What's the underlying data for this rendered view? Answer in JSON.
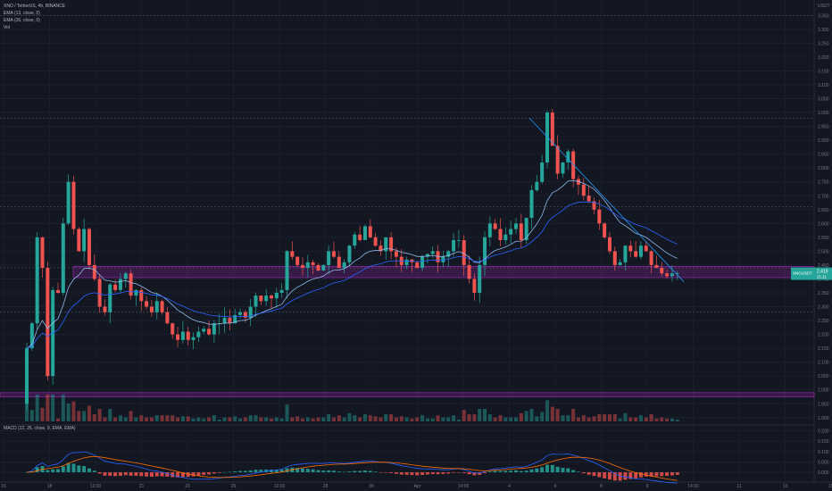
{
  "header": {
    "symbol_line": "XNO / TetherUS, 4h, BINANCE",
    "indicator_1": "EMA (13, close, 0)",
    "indicator_2": "EMA (26, close, 0)",
    "indicator_3": "Vol",
    "macd_legend": "MACD (12, 26, close, 9, EMA, EMA)"
  },
  "axis": {
    "currency": "USDT",
    "price_badge_symbol": "XNOUSDT",
    "price_badge_value": "2.419",
    "price_badge_time": "21:11"
  },
  "chart_data": {
    "type": "candlestick",
    "price_ticks": [
      "3.350",
      "3.300",
      "3.250",
      "3.200",
      "3.150",
      "3.100",
      "3.050",
      "3.000",
      "2.950",
      "2.900",
      "2.850",
      "2.800",
      "2.750",
      "2.700",
      "2.650",
      "2.600",
      "2.550",
      "2.500",
      "2.450",
      "2.400",
      "2.350",
      "2.300",
      "2.250",
      "2.200",
      "2.150",
      "2.100",
      "2.050",
      "2.000",
      "1.950",
      "1.900"
    ],
    "price_range": [
      1.88,
      3.38
    ],
    "macd_ticks": [
      "0.200",
      "0.150",
      "0.100",
      "0.050",
      "0.000"
    ],
    "macd_range": [
      -0.03,
      0.22
    ],
    "time_labels": [
      {
        "label": "16",
        "ts": 0
      },
      {
        "label": "18",
        "ts": 18
      },
      {
        "label": "12:00",
        "ts": 36
      },
      {
        "label": "21",
        "ts": 54
      },
      {
        "label": "23",
        "ts": 72
      },
      {
        "label": "25",
        "ts": 90
      },
      {
        "label": "12:00",
        "ts": 108
      },
      {
        "label": "28",
        "ts": 126
      },
      {
        "label": "30",
        "ts": 144
      },
      {
        "label": "Apr",
        "ts": 162
      },
      {
        "label": "14:00",
        "ts": 180
      },
      {
        "label": "4",
        "ts": 198
      },
      {
        "label": "6",
        "ts": 216
      },
      {
        "label": "8",
        "ts": 234
      },
      {
        "label": "9",
        "ts": 252
      },
      {
        "label": "14:00",
        "ts": 270
      },
      {
        "label": "11",
        "ts": 288
      },
      {
        "label": "13",
        "ts": 306
      },
      {
        "label": "15",
        "ts": 324
      }
    ],
    "candles_close": [
      2.15,
      2.24,
      2.55,
      2.44,
      2.05,
      2.36,
      2.35,
      2.6,
      2.75,
      2.58,
      2.5,
      2.58,
      2.45,
      2.4,
      2.3,
      2.28,
      2.38,
      2.36,
      2.4,
      2.42,
      2.34,
      2.36,
      2.32,
      2.3,
      2.28,
      2.32,
      2.28,
      2.24,
      2.2,
      2.18,
      2.21,
      2.18,
      2.19,
      2.21,
      2.22,
      2.2,
      2.24,
      2.24,
      2.26,
      2.24,
      2.27,
      2.28,
      2.26,
      2.3,
      2.34,
      2.32,
      2.34,
      2.33,
      2.35,
      2.36,
      2.5,
      2.48,
      2.45,
      2.44,
      2.46,
      2.45,
      2.43,
      2.45,
      2.5,
      2.48,
      2.44,
      2.46,
      2.52,
      2.56,
      2.54,
      2.59,
      2.55,
      2.52,
      2.5,
      2.55,
      2.5,
      2.48,
      2.45,
      2.47,
      2.46,
      2.44,
      2.48,
      2.49,
      2.5,
      2.46,
      2.48,
      2.5,
      2.54,
      2.54,
      2.45,
      2.4,
      2.35,
      2.45,
      2.55,
      2.6,
      2.58,
      2.54,
      2.56,
      2.58,
      2.6,
      2.54,
      2.62,
      2.72,
      2.75,
      2.82,
      3.0,
      2.88,
      2.78,
      2.82,
      2.86,
      2.76,
      2.74,
      2.7,
      2.68,
      2.65,
      2.6,
      2.55,
      2.5,
      2.45,
      2.46,
      2.52,
      2.5,
      2.48,
      2.52,
      2.5,
      2.45,
      2.44,
      2.42,
      2.41,
      2.42,
      2.42
    ],
    "volume_scale": "relative",
    "trendline": {
      "from": {
        "ts": 201,
        "price": 2.98
      },
      "to": {
        "ts": 268,
        "price": 2.39
      }
    },
    "zones": [
      {
        "name": "resistance-support-zone",
        "from": 2.405,
        "to": 2.445
      },
      {
        "name": "demand-zone",
        "from": 1.975,
        "to": 1.99
      }
    ],
    "series": [
      {
        "name": "EMA 13",
        "color": "#8fb8e8"
      },
      {
        "name": "EMA 26",
        "color": "#2962ff"
      },
      {
        "name": "MACD",
        "color": "#2962ff"
      },
      {
        "name": "Signal",
        "color": "#ff6d00"
      }
    ],
    "colors": {
      "up": "#26a69a",
      "down": "#ef5350",
      "zone": "#9c27b0",
      "trend": "#2196f3"
    }
  }
}
